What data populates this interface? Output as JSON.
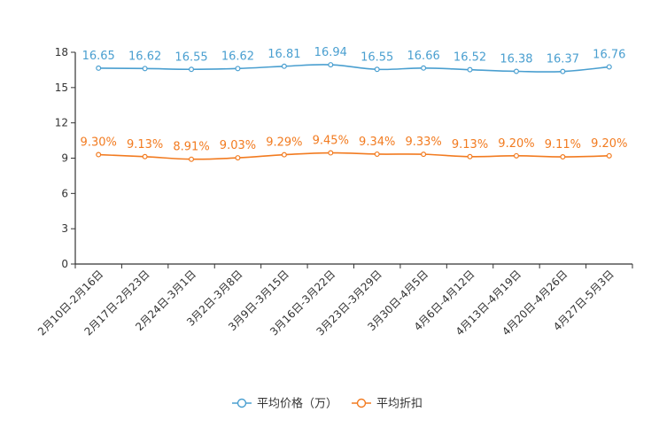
{
  "chart_data": {
    "type": "line",
    "categories": [
      "2月10日-2月16日",
      "2月17日-2月23日",
      "2月24日-3月1日",
      "3月2日-3月8日",
      "3月9日-3月15日",
      "3月16日-3月22日",
      "3月23日-3月29日",
      "3月30日-4月5日",
      "4月6日-4月12日",
      "4月13日-4月19日",
      "4月20日-4月26日",
      "4月27日-5月3日"
    ],
    "series": [
      {
        "name": "平均价格（万）",
        "color": "#4a9fd0",
        "values": [
          16.65,
          16.62,
          16.55,
          16.62,
          16.81,
          16.94,
          16.55,
          16.66,
          16.52,
          16.38,
          16.37,
          16.76
        ],
        "labels": [
          "16.65",
          "16.62",
          "16.55",
          "16.62",
          "16.81",
          "16.94",
          "16.55",
          "16.66",
          "16.52",
          "16.38",
          "16.37",
          "16.76"
        ]
      },
      {
        "name": "平均折扣",
        "color": "#f27b20",
        "values": [
          9.3,
          9.13,
          8.91,
          9.03,
          9.29,
          9.45,
          9.34,
          9.33,
          9.13,
          9.2,
          9.11,
          9.2
        ],
        "labels": [
          "9.30%",
          "9.13%",
          "8.91%",
          "9.03%",
          "9.29%",
          "9.45%",
          "9.34%",
          "9.33%",
          "9.13%",
          "9.20%",
          "9.11%",
          "9.20%"
        ]
      }
    ],
    "yticks": [
      "0",
      "3",
      "6",
      "9",
      "12",
      "15",
      "18"
    ],
    "ylim": [
      0,
      18
    ],
    "title": "",
    "xlabel": "",
    "ylabel": "",
    "legend_position": "bottom-center"
  }
}
